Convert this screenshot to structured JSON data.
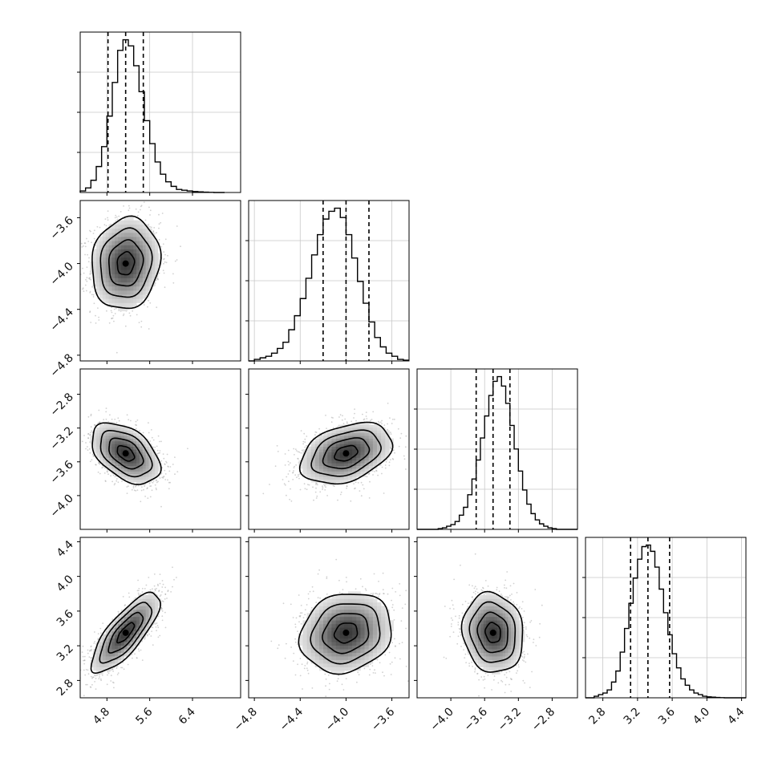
{
  "chart_data": {
    "type": "corner",
    "parameters": [
      {
        "index": 0,
        "mean": 5.15,
        "sd": 0.32,
        "range": [
          4.3,
          7.3
        ],
        "ticks": [
          4.8,
          5.6,
          6.4
        ],
        "tick_labels": [
          "4.8",
          "5.6",
          "6.4"
        ],
        "quantiles": [
          4.82,
          5.15,
          5.48
        ]
      },
      {
        "index": 1,
        "mean": -4.0,
        "sd": 0.2,
        "range": [
          -4.85,
          -3.45
        ],
        "ticks": [
          -4.8,
          -4.4,
          -4.0,
          -3.6
        ],
        "tick_labels": [
          "−4.8",
          "−4.4",
          "−4.0",
          "−3.6"
        ],
        "quantiles": [
          -4.2,
          -4.0,
          -3.8
        ]
      },
      {
        "index": 2,
        "mean": -3.5,
        "sd": 0.18,
        "range": [
          -4.4,
          -2.5
        ],
        "ticks": [
          -4.0,
          -3.6,
          -3.2,
          -2.8
        ],
        "tick_labels": [
          "−4.0",
          "−3.6",
          "−3.2",
          "−2.8"
        ],
        "quantiles": [
          -3.7,
          -3.5,
          -3.3
        ]
      },
      {
        "index": 3,
        "mean": 3.35,
        "sd": 0.23,
        "range": [
          2.6,
          4.45
        ],
        "ticks": [
          2.8,
          3.2,
          3.6,
          4.0,
          4.4
        ],
        "tick_labels": [
          "2.8",
          "3.2",
          "3.6",
          "4.0",
          "4.4"
        ],
        "quantiles": [
          3.12,
          3.32,
          3.57
        ]
      }
    ],
    "histograms": [
      {
        "param": 0,
        "bin_edges": [
          4.3,
          4.4,
          4.5,
          4.6,
          4.7,
          4.8,
          4.9,
          5.0,
          5.1,
          5.2,
          5.3,
          5.4,
          5.5,
          5.6,
          5.7,
          5.8,
          5.9,
          6.0,
          6.1,
          6.2,
          6.3,
          6.4,
          6.5,
          6.6,
          6.7,
          6.8,
          6.9,
          7.0
        ],
        "counts": [
          0.01,
          0.03,
          0.08,
          0.17,
          0.3,
          0.5,
          0.72,
          0.93,
          1.0,
          0.96,
          0.83,
          0.66,
          0.47,
          0.32,
          0.2,
          0.12,
          0.07,
          0.04,
          0.02,
          0.015,
          0.01,
          0.006,
          0.004,
          0.002,
          0.001,
          0.0,
          0.0
        ]
      },
      {
        "param": 1,
        "bin_edges": [
          -4.85,
          -4.8,
          -4.75,
          -4.7,
          -4.65,
          -4.6,
          -4.55,
          -4.5,
          -4.45,
          -4.4,
          -4.35,
          -4.3,
          -4.25,
          -4.2,
          -4.15,
          -4.1,
          -4.05,
          -4.0,
          -3.95,
          -3.9,
          -3.85,
          -3.8,
          -3.75,
          -3.7,
          -3.65,
          -3.6,
          -3.55,
          -3.5,
          -3.45
        ],
        "counts": [
          0.0,
          0.01,
          0.02,
          0.03,
          0.05,
          0.08,
          0.12,
          0.2,
          0.29,
          0.4,
          0.53,
          0.68,
          0.81,
          0.91,
          0.96,
          0.98,
          0.92,
          0.81,
          0.66,
          0.51,
          0.37,
          0.25,
          0.15,
          0.09,
          0.05,
          0.03,
          0.01,
          0.005
        ]
      },
      {
        "param": 2,
        "bin_edges": [
          -4.4,
          -4.35,
          -4.3,
          -4.25,
          -4.2,
          -4.15,
          -4.1,
          -4.05,
          -4.0,
          -3.95,
          -3.9,
          -3.85,
          -3.8,
          -3.75,
          -3.7,
          -3.65,
          -3.6,
          -3.55,
          -3.5,
          -3.45,
          -3.4,
          -3.35,
          -3.3,
          -3.25,
          -3.2,
          -3.15,
          -3.1,
          -3.05,
          -3.0,
          -2.95,
          -2.9,
          -2.85,
          -2.8,
          -2.75,
          -2.7,
          -2.65,
          -2.6,
          -2.55,
          -2.5
        ],
        "counts": [
          0.0,
          0.0,
          0.0,
          0.0,
          0.0,
          0.005,
          0.01,
          0.02,
          0.03,
          0.05,
          0.09,
          0.14,
          0.22,
          0.32,
          0.44,
          0.58,
          0.72,
          0.85,
          0.94,
          0.97,
          0.91,
          0.8,
          0.66,
          0.51,
          0.37,
          0.25,
          0.16,
          0.1,
          0.06,
          0.035,
          0.02,
          0.01,
          0.005,
          0.0,
          0.0,
          0.0,
          0.0,
          0.0
        ]
      },
      {
        "param": 3,
        "bin_edges": [
          2.6,
          2.65,
          2.7,
          2.75,
          2.8,
          2.85,
          2.9,
          2.95,
          3.0,
          3.05,
          3.1,
          3.15,
          3.2,
          3.25,
          3.3,
          3.35,
          3.4,
          3.45,
          3.5,
          3.55,
          3.6,
          3.65,
          3.7,
          3.75,
          3.8,
          3.85,
          3.9,
          3.95,
          4.0,
          4.05,
          4.1,
          4.15,
          4.2,
          4.25,
          4.3,
          4.35,
          4.4,
          4.45
        ],
        "counts": [
          0.0,
          0.0,
          0.01,
          0.02,
          0.03,
          0.05,
          0.1,
          0.17,
          0.29,
          0.44,
          0.6,
          0.76,
          0.88,
          0.96,
          0.97,
          0.93,
          0.83,
          0.69,
          0.54,
          0.4,
          0.28,
          0.19,
          0.12,
          0.08,
          0.05,
          0.03,
          0.02,
          0.01,
          0.006,
          0.004,
          0.002,
          0.001,
          0.0,
          0.0,
          0.0,
          0.0,
          0.0
        ]
      }
    ],
    "correlations": [
      {
        "x_param": 0,
        "y_param": 1,
        "rho": 0.1
      },
      {
        "x_param": 0,
        "y_param": 2,
        "rho": -0.45
      },
      {
        "x_param": 1,
        "y_param": 2,
        "rho": 0.35
      },
      {
        "x_param": 0,
        "y_param": 3,
        "rho": 0.78
      },
      {
        "x_param": 1,
        "y_param": 3,
        "rho": 0.15
      },
      {
        "x_param": 2,
        "y_param": 3,
        "rho": -0.1
      }
    ],
    "contour_levels_sigma": [
      0.5,
      1.0,
      1.5,
      2.0
    ],
    "grid": true
  }
}
